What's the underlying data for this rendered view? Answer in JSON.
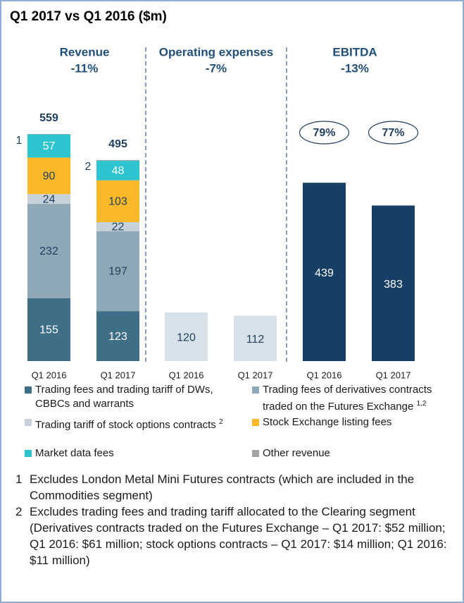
{
  "title": "Q1 2017 vs Q1 2016 ($m)",
  "chart_data": [
    {
      "type": "stacked_bar",
      "title": "Revenue",
      "subtitle": "-11%",
      "categories": [
        "Q1 2016",
        "Q1 2017"
      ],
      "bar_notes": [
        "1",
        "2"
      ],
      "totals": [
        559,
        495
      ],
      "series": [
        {
          "name": "Trading fees and trading tariff of DWs, CBBCs and warrants",
          "color": "#3f6f86",
          "label_color": "#ffffff",
          "values": [
            155,
            123
          ]
        },
        {
          "name": "Trading fees of derivatives contracts traded on the Futures Exchange",
          "note": "1,2",
          "color": "#8fa8b7",
          "label_color": "#1f3f5f",
          "values": [
            232,
            197
          ]
        },
        {
          "name": "Trading tariff of stock options contracts",
          "note": "2",
          "color": "#c6d1d9",
          "label_color": "#1f3f5f",
          "values": [
            24,
            22
          ]
        },
        {
          "name": "Stock Exchange listing fees",
          "color": "#fbb829",
          "label_color": "#1f3f5f",
          "values": [
            90,
            103
          ]
        },
        {
          "name": "Market data fees",
          "color": "#2cc4d1",
          "label_color": "#ffffff",
          "values": [
            57,
            48
          ]
        },
        {
          "name": "Other revenue",
          "color": "#a3a3a3",
          "values": [
            1,
            2
          ]
        }
      ]
    },
    {
      "type": "bar",
      "title": "Operating expenses",
      "subtitle": "-7%",
      "categories": [
        "Q1 2016",
        "Q1 2017"
      ],
      "values": [
        120,
        112
      ],
      "color": "#d7e1ea",
      "label_color": "#1f3f5f"
    },
    {
      "type": "bar",
      "title": "EBITDA",
      "subtitle": "-13%",
      "categories": [
        "Q1 2016",
        "Q1 2017"
      ],
      "values": [
        439,
        383
      ],
      "color": "#173f66",
      "label_color": "#ffffff",
      "margins": {
        "values": [
          79,
          77
        ],
        "value_labels": [
          "79%",
          "77%"
        ]
      }
    }
  ],
  "footnotes": [
    {
      "marker": "1",
      "text": "Excludes London Metal Mini Futures contracts (which are included in the Commodities segment)"
    },
    {
      "marker": "2",
      "text": "Excludes trading fees and trading tariff allocated to the Clearing segment (Derivatives contracts traded on the Futures Exchange – Q1 2017: $52 million; Q1 2016: $61 million; stock options contracts – Q1 2017: $14 million; Q1 2016: $11 million)"
    }
  ]
}
